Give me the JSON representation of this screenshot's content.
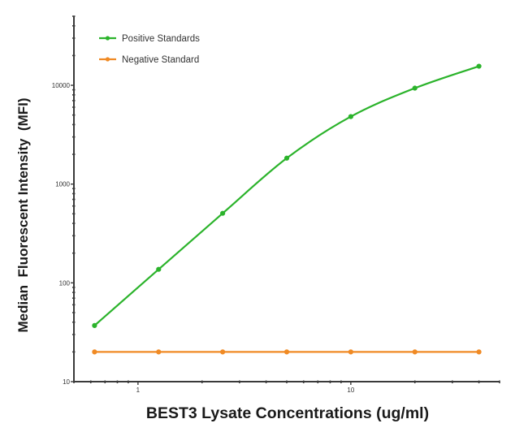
{
  "chart_data": {
    "type": "line",
    "title": "",
    "xlabel": "BEST3 Lysate Concentrations (ug/ml)",
    "ylabel": "Median  Fluorescent Intensity  (MFI)",
    "xscale": "log",
    "yscale": "log",
    "xlim": [
      0.5,
      50
    ],
    "ylim": [
      10,
      50000
    ],
    "x_ticks": [
      {
        "value": 1,
        "label": "1"
      },
      {
        "value": 10,
        "label": "10"
      }
    ],
    "y_ticks": [
      {
        "value": 10,
        "label": "10"
      },
      {
        "value": 100,
        "label": "100"
      },
      {
        "value": 1000,
        "label": "1000"
      },
      {
        "value": 10000,
        "label": "10000"
      }
    ],
    "grid": false,
    "legend_position": "upper-left",
    "x": [
      0.625,
      1.25,
      2.5,
      5,
      10,
      20,
      40
    ],
    "series": [
      {
        "name": "Positive Standards",
        "color": "#2bb32b",
        "marker": "circle",
        "smooth": true,
        "values": [
          37,
          137,
          506,
          1830,
          4820,
          9360,
          15600
        ]
      },
      {
        "name": "Negative Standard",
        "color": "#f08a24",
        "marker": "circle",
        "smooth": false,
        "values": [
          20,
          20,
          20,
          20,
          20,
          20,
          20
        ]
      }
    ]
  },
  "legend": {
    "items": [
      {
        "label": "Positive Standards",
        "color": "#2bb32b"
      },
      {
        "label": "Negative Standard",
        "color": "#f08a24"
      }
    ]
  },
  "colors": {
    "axis": "#3a3a3a",
    "text": "#1a1a1a",
    "background": "#ffffff"
  }
}
